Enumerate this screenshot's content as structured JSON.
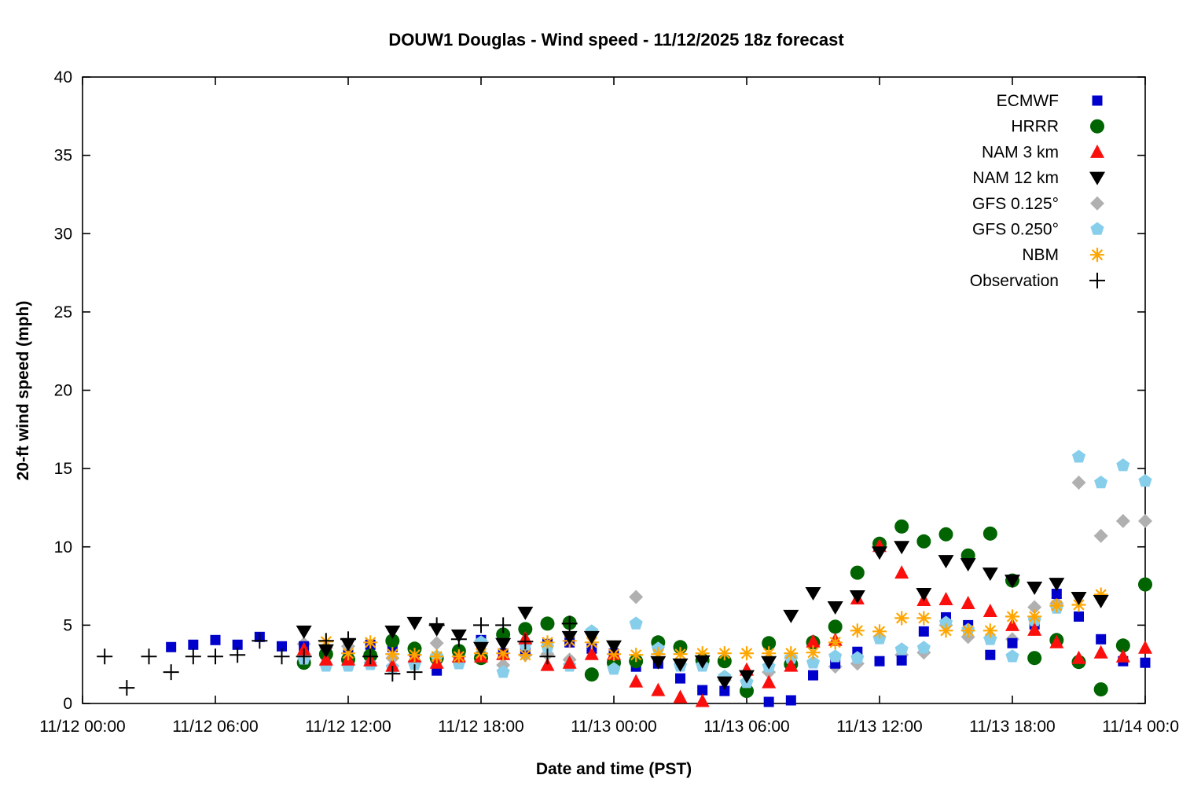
{
  "title": "DOUW1 Douglas - Wind speed - 11/12/2025 18z forecast",
  "x_axis": {
    "label": "Date and time (PST)",
    "tick_labels": [
      "11/12 00:00",
      "11/12 06:00",
      "11/12 12:00",
      "11/12 18:00",
      "11/13 00:00",
      "11/13 06:00",
      "11/13 12:00",
      "11/13 18:00",
      "11/14 00:00"
    ]
  },
  "y_axis": {
    "label": "20-ft wind speed (mph)",
    "tick_labels": [
      "0",
      "5",
      "10",
      "15",
      "20",
      "25",
      "30",
      "35",
      "40"
    ]
  },
  "chart_data": {
    "type": "scatter",
    "title": "DOUW1 Douglas - Wind speed - 11/12/2025 18z forecast",
    "xlabel": "Date and time (PST)",
    "ylabel": "20-ft wind speed (mph)",
    "x_unit": "hours since 11/12 00:00 PST",
    "xlim": [
      0,
      48
    ],
    "ylim": [
      0,
      40
    ],
    "x_tick_hours": [
      0,
      6,
      12,
      18,
      24,
      30,
      36,
      42,
      48
    ],
    "x_tick_labels": [
      "11/12 00:00",
      "11/12 06:00",
      "11/12 12:00",
      "11/12 18:00",
      "11/13 00:00",
      "11/13 06:00",
      "11/13 12:00",
      "11/13 18:00",
      "11/14 00:00"
    ],
    "y_ticks": [
      0,
      5,
      10,
      15,
      20,
      25,
      30,
      35,
      40
    ],
    "grid": false,
    "legend_position": "top-right-inside",
    "draw_order": [
      4,
      0,
      1,
      5,
      2,
      6,
      3,
      7
    ],
    "series": [
      {
        "name": "ECMWF",
        "marker": "square",
        "color": "#0000cc",
        "points": [
          [
            4,
            3.6
          ],
          [
            5,
            3.75
          ],
          [
            6,
            4.05
          ],
          [
            7,
            3.75
          ],
          [
            8,
            4.25
          ],
          [
            9,
            3.65
          ],
          [
            10,
            3.65
          ],
          [
            11,
            3.15
          ],
          [
            12,
            3.1
          ],
          [
            13,
            3.75
          ],
          [
            14,
            3.6
          ],
          [
            15,
            3.3
          ],
          [
            16,
            2.1
          ],
          [
            17,
            3.0
          ],
          [
            18,
            4.05
          ],
          [
            19,
            3.2
          ],
          [
            20,
            3.45
          ],
          [
            21,
            3.8
          ],
          [
            22,
            3.9
          ],
          [
            23,
            3.5
          ],
          [
            24,
            3.2
          ],
          [
            25,
            2.35
          ],
          [
            26,
            2.55
          ],
          [
            27,
            1.6
          ],
          [
            28,
            0.85
          ],
          [
            29,
            0.8
          ],
          [
            31,
            0.1
          ],
          [
            32,
            0.2
          ],
          [
            33,
            1.8
          ],
          [
            34,
            2.55
          ],
          [
            35,
            3.3
          ],
          [
            36,
            2.7
          ],
          [
            37,
            2.75
          ],
          [
            38,
            4.6
          ],
          [
            39,
            5.5
          ],
          [
            40,
            5.0
          ],
          [
            41,
            3.1
          ],
          [
            42,
            3.85
          ],
          [
            43,
            5.05
          ],
          [
            44,
            7.0
          ],
          [
            45,
            5.55
          ],
          [
            46,
            4.1
          ],
          [
            47,
            2.7
          ],
          [
            48,
            2.6
          ]
        ]
      },
      {
        "name": "HRRR",
        "marker": "circle",
        "color": "#006400",
        "points": [
          [
            10,
            2.6
          ],
          [
            11,
            3.15
          ],
          [
            12,
            2.8
          ],
          [
            13,
            3.05
          ],
          [
            14,
            4.0
          ],
          [
            15,
            3.5
          ],
          [
            16,
            2.9
          ],
          [
            17,
            3.35
          ],
          [
            18,
            2.9
          ],
          [
            19,
            4.4
          ],
          [
            20,
            4.75
          ],
          [
            21,
            5.1
          ],
          [
            22,
            5.15
          ],
          [
            23,
            1.85
          ],
          [
            24,
            2.6
          ],
          [
            25,
            2.7
          ],
          [
            26,
            3.9
          ],
          [
            27,
            3.6
          ],
          [
            28,
            2.75
          ],
          [
            29,
            2.7
          ],
          [
            30,
            0.8
          ],
          [
            31,
            3.85
          ],
          [
            32,
            2.5
          ],
          [
            33,
            3.9
          ],
          [
            34,
            4.9
          ],
          [
            35,
            8.35
          ],
          [
            36,
            10.2
          ],
          [
            37,
            11.3
          ],
          [
            38,
            10.35
          ],
          [
            39,
            10.8
          ],
          [
            40,
            9.45
          ],
          [
            41,
            10.85
          ],
          [
            42,
            7.85
          ],
          [
            43,
            2.9
          ],
          [
            44,
            4.05
          ],
          [
            45,
            2.65
          ],
          [
            46,
            0.9
          ],
          [
            47,
            3.7
          ],
          [
            48,
            7.6
          ]
        ]
      },
      {
        "name": "NAM 3 km",
        "marker": "triangle-up",
        "color": "#fb0f0c",
        "points": [
          [
            10,
            3.45
          ],
          [
            11,
            2.8
          ],
          [
            12,
            2.8
          ],
          [
            13,
            2.75
          ],
          [
            14,
            2.4
          ],
          [
            15,
            3.0
          ],
          [
            16,
            2.6
          ],
          [
            17,
            3.0
          ],
          [
            18,
            3.0
          ],
          [
            19,
            3.15
          ],
          [
            20,
            4.15
          ],
          [
            21,
            2.45
          ],
          [
            22,
            2.6
          ],
          [
            23,
            3.15
          ],
          [
            24,
            3.15
          ],
          [
            25,
            1.4
          ],
          [
            26,
            0.85
          ],
          [
            27,
            0.4
          ],
          [
            28,
            0.15
          ],
          [
            30,
            2.15
          ],
          [
            31,
            1.35
          ],
          [
            32,
            2.4
          ],
          [
            33,
            3.95
          ],
          [
            34,
            4.05
          ],
          [
            35,
            6.7
          ],
          [
            36,
            10.05
          ],
          [
            37,
            8.35
          ],
          [
            38,
            6.6
          ],
          [
            39,
            6.65
          ],
          [
            40,
            6.4
          ],
          [
            41,
            5.9
          ],
          [
            42,
            5.0
          ],
          [
            43,
            4.7
          ],
          [
            44,
            3.9
          ],
          [
            45,
            2.9
          ],
          [
            46,
            3.25
          ],
          [
            47,
            3.0
          ],
          [
            48,
            3.55
          ]
        ]
      },
      {
        "name": "NAM 12 km",
        "marker": "triangle-down",
        "color": "#000000",
        "points": [
          [
            10,
            4.6
          ],
          [
            11,
            3.4
          ],
          [
            12,
            3.8
          ],
          [
            14,
            4.6
          ],
          [
            15,
            5.15
          ],
          [
            16,
            4.75
          ],
          [
            17,
            4.35
          ],
          [
            18,
            3.55
          ],
          [
            19,
            3.8
          ],
          [
            20,
            5.8
          ],
          [
            22,
            4.25
          ],
          [
            23,
            4.25
          ],
          [
            24,
            3.65
          ],
          [
            26,
            2.65
          ],
          [
            27,
            2.5
          ],
          [
            28,
            2.7
          ],
          [
            29,
            1.35
          ],
          [
            30,
            1.75
          ],
          [
            31,
            2.65
          ],
          [
            32,
            5.6
          ],
          [
            33,
            7.05
          ],
          [
            34,
            6.15
          ],
          [
            35,
            6.85
          ],
          [
            36,
            9.65
          ],
          [
            37,
            10.0
          ],
          [
            38,
            7.0
          ],
          [
            39,
            9.1
          ],
          [
            40,
            8.9
          ],
          [
            41,
            8.3
          ],
          [
            42,
            7.85
          ],
          [
            43,
            7.4
          ],
          [
            44,
            7.65
          ],
          [
            45,
            6.75
          ],
          [
            46,
            6.55
          ]
        ]
      },
      {
        "name": "GFS 0.125°",
        "marker": "diamond",
        "color": "#b0b0b0",
        "points": [
          [
            10,
            3.8
          ],
          [
            11,
            3.55
          ],
          [
            12,
            3.65
          ],
          [
            13,
            3.25
          ],
          [
            14,
            2.9
          ],
          [
            15,
            3.1
          ],
          [
            16,
            3.85
          ],
          [
            17,
            3.0
          ],
          [
            18,
            3.2
          ],
          [
            19,
            2.45
          ],
          [
            20,
            3.1
          ],
          [
            21,
            3.15
          ],
          [
            22,
            2.8
          ],
          [
            24,
            2.7
          ],
          [
            25,
            6.8
          ],
          [
            26,
            3.9
          ],
          [
            28,
            2.75
          ],
          [
            29,
            1.5
          ],
          [
            30,
            0.9
          ],
          [
            31,
            2.0
          ],
          [
            32,
            2.9
          ],
          [
            34,
            2.35
          ],
          [
            35,
            2.55
          ],
          [
            37,
            3.1
          ],
          [
            38,
            3.25
          ],
          [
            39,
            5.0
          ],
          [
            40,
            4.25
          ],
          [
            41,
            4.2
          ],
          [
            42,
            4.1
          ],
          [
            43,
            6.15
          ],
          [
            44,
            6.4
          ],
          [
            45,
            14.1
          ],
          [
            46,
            10.7
          ],
          [
            47,
            11.65
          ],
          [
            48,
            11.65
          ]
        ]
      },
      {
        "name": "GFS 0.250°",
        "marker": "pentagon",
        "color": "#87ceeb",
        "points": [
          [
            10,
            2.85
          ],
          [
            11,
            2.4
          ],
          [
            12,
            2.4
          ],
          [
            13,
            2.5
          ],
          [
            14,
            2.3
          ],
          [
            15,
            2.5
          ],
          [
            16,
            3.0
          ],
          [
            17,
            2.55
          ],
          [
            18,
            3.9
          ],
          [
            19,
            2.0
          ],
          [
            20,
            3.75
          ],
          [
            21,
            3.6
          ],
          [
            22,
            2.4
          ],
          [
            23,
            4.6
          ],
          [
            24,
            2.2
          ],
          [
            25,
            5.1
          ],
          [
            26,
            3.5
          ],
          [
            27,
            2.4
          ],
          [
            28,
            2.4
          ],
          [
            29,
            1.7
          ],
          [
            30,
            1.35
          ],
          [
            31,
            2.35
          ],
          [
            32,
            2.9
          ],
          [
            33,
            2.6
          ],
          [
            34,
            3.0
          ],
          [
            35,
            2.9
          ],
          [
            36,
            4.15
          ],
          [
            37,
            3.45
          ],
          [
            38,
            3.55
          ],
          [
            39,
            5.15
          ],
          [
            40,
            4.7
          ],
          [
            41,
            4.1
          ],
          [
            42,
            3.0
          ],
          [
            43,
            5.3
          ],
          [
            44,
            6.1
          ],
          [
            45,
            15.75
          ],
          [
            46,
            14.1
          ],
          [
            47,
            15.2
          ],
          [
            48,
            14.2
          ]
        ]
      },
      {
        "name": "NBM",
        "marker": "asterisk",
        "color": "#ffa500",
        "points": [
          [
            11,
            3.95
          ],
          [
            12,
            3.2
          ],
          [
            13,
            3.9
          ],
          [
            14,
            3.15
          ],
          [
            15,
            3.1
          ],
          [
            16,
            3.0
          ],
          [
            17,
            3.0
          ],
          [
            18,
            3.2
          ],
          [
            19,
            3.2
          ],
          [
            20,
            3.1
          ],
          [
            21,
            3.9
          ],
          [
            22,
            4.0
          ],
          [
            23,
            3.9
          ],
          [
            24,
            3.15
          ],
          [
            25,
            3.1
          ],
          [
            26,
            3.15
          ],
          [
            27,
            3.15
          ],
          [
            28,
            3.2
          ],
          [
            29,
            3.2
          ],
          [
            30,
            3.2
          ],
          [
            31,
            3.2
          ],
          [
            32,
            3.2
          ],
          [
            33,
            3.25
          ],
          [
            34,
            3.9
          ],
          [
            35,
            4.65
          ],
          [
            36,
            4.6
          ],
          [
            37,
            5.45
          ],
          [
            38,
            5.45
          ],
          [
            39,
            4.65
          ],
          [
            40,
            4.65
          ],
          [
            41,
            4.65
          ],
          [
            42,
            5.55
          ],
          [
            43,
            5.55
          ],
          [
            44,
            6.25
          ],
          [
            45,
            6.3
          ],
          [
            46,
            6.95
          ]
        ]
      },
      {
        "name": "Observation",
        "marker": "plus",
        "color": "#000000",
        "points": [
          [
            1,
            3.0
          ],
          [
            2,
            1.0
          ],
          [
            3,
            3.0
          ],
          [
            4,
            2.0
          ],
          [
            5,
            3.0
          ],
          [
            6,
            3.0
          ],
          [
            7,
            3.1
          ],
          [
            8,
            4.0
          ],
          [
            9,
            3.0
          ],
          [
            10,
            3.0
          ],
          [
            11,
            4.0
          ],
          [
            12,
            4.1
          ],
          [
            13,
            3.0
          ],
          [
            14,
            1.9
          ],
          [
            15,
            2.0
          ],
          [
            16,
            5.0
          ],
          [
            17,
            4.1
          ],
          [
            18,
            5.0
          ],
          [
            19,
            5.0
          ],
          [
            20,
            3.95
          ],
          [
            21,
            3.0
          ],
          [
            22,
            5.1
          ]
        ]
      }
    ]
  }
}
